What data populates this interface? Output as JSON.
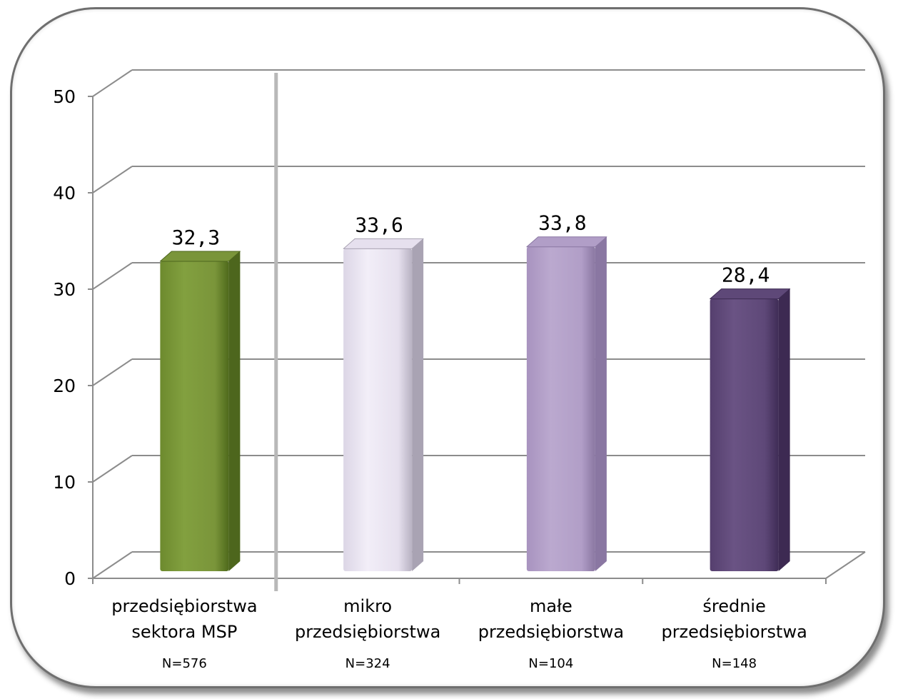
{
  "chart_data": {
    "type": "bar",
    "categories": [
      [
        "przedsiębiorstwa",
        "sektora MSP"
      ],
      [
        "mikro",
        "przedsiębiorstwa"
      ],
      [
        "małe",
        "przedsiębiorstwa"
      ],
      [
        "średnie",
        "przedsiębiorstwa"
      ]
    ],
    "sample_sizes": [
      "N=576",
      "N=324",
      "N=104",
      "N=148"
    ],
    "values": [
      32.3,
      33.6,
      33.8,
      28.4
    ],
    "value_labels": [
      "32,3",
      "33,6",
      "33,8",
      "28,4"
    ],
    "colors": [
      "#7a953a",
      "#e6e0ee",
      "#b19ec7",
      "#5e4878"
    ],
    "yticks": [
      0,
      10,
      20,
      30,
      40,
      50
    ],
    "ylim": [
      0,
      50
    ],
    "grid": true,
    "title": "",
    "xlabel": "",
    "ylabel": ""
  }
}
